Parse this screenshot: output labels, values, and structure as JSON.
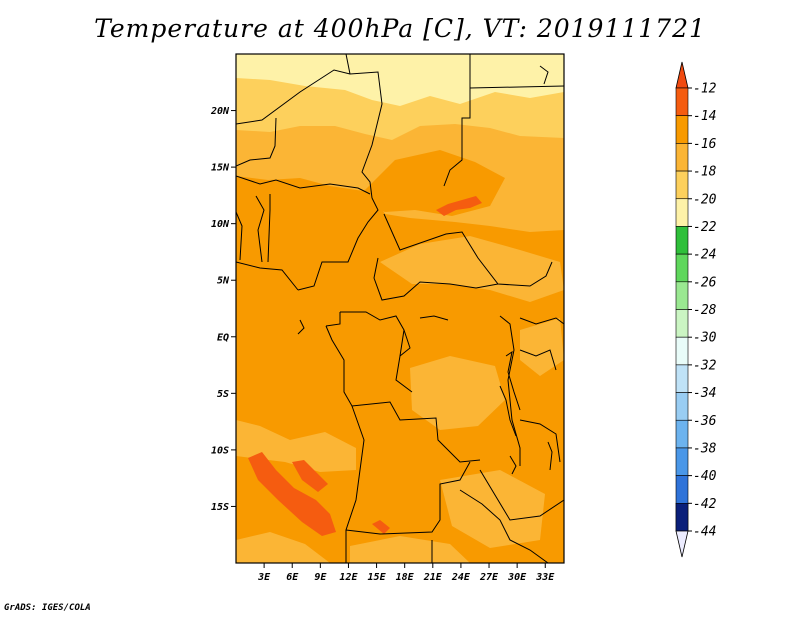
{
  "title": "Temperature at 400hPa [C], VT: 2019111721",
  "credit": "GrADS: IGES/COLA",
  "map": {
    "lon_range": [
      0,
      35
    ],
    "lat_range": [
      -20,
      25
    ],
    "lat_ticks": [
      {
        "value": 20,
        "label": "20N"
      },
      {
        "value": 15,
        "label": "15N"
      },
      {
        "value": 10,
        "label": "10N"
      },
      {
        "value": 5,
        "label": "5N"
      },
      {
        "value": 0,
        "label": "EQ"
      },
      {
        "value": -5,
        "label": "5S"
      },
      {
        "value": -10,
        "label": "10S"
      },
      {
        "value": -15,
        "label": "15S"
      }
    ],
    "lon_ticks": [
      {
        "value": 3,
        "label": "3E"
      },
      {
        "value": 6,
        "label": "6E"
      },
      {
        "value": 9,
        "label": "9E"
      },
      {
        "value": 12,
        "label": "12E"
      },
      {
        "value": 15,
        "label": "15E"
      },
      {
        "value": 18,
        "label": "18E"
      },
      {
        "value": 21,
        "label": "21E"
      },
      {
        "value": 24,
        "label": "24E"
      },
      {
        "value": 27,
        "label": "27E"
      },
      {
        "value": 30,
        "label": "30E"
      },
      {
        "value": 33,
        "label": "33E"
      }
    ]
  },
  "colorbar": {
    "top_arrow_color": "#f04a10",
    "bottom_arrow_color": "#ececff",
    "bins": [
      {
        "color": "#f55c10"
      },
      {
        "color": "#f89a00"
      },
      {
        "color": "#fbb535"
      },
      {
        "color": "#fdd05c"
      },
      {
        "color": "#fef2a8"
      },
      {
        "color": "#2fbf3a"
      },
      {
        "color": "#5fd75c"
      },
      {
        "color": "#9ae891"
      },
      {
        "color": "#cbf5c3"
      },
      {
        "color": "#e9fcf9"
      },
      {
        "color": "#bfe2f7"
      },
      {
        "color": "#99cdf3"
      },
      {
        "color": "#6cb3ef"
      },
      {
        "color": "#4a97e8"
      },
      {
        "color": "#2f73d9"
      },
      {
        "color": "#1b4bc0"
      },
      {
        "color": "#0a1f7a"
      }
    ],
    "labels": [
      "-12",
      "-14",
      "-16",
      "-18",
      "-20",
      "-22",
      "-24",
      "-26",
      "-28",
      "-30",
      "-32",
      "-34",
      "-36",
      "-38",
      "-40",
      "-42",
      "-44"
    ]
  }
}
